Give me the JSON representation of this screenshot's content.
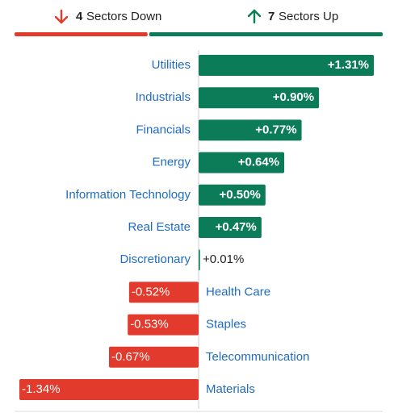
{
  "chart_data": {
    "type": "diverging-bar",
    "down_count": 4,
    "down_label": "Sectors Down",
    "up_count": 7,
    "up_label": "Sectors Up",
    "categories": [
      "Utilities",
      "Industrials",
      "Financials",
      "Energy",
      "Information Technology",
      "Real Estate",
      "Discretionary",
      "Health Care",
      "Staples",
      "Telecommunication",
      "Materials"
    ],
    "values": [
      1.31,
      0.9,
      0.77,
      0.64,
      0.5,
      0.47,
      0.01,
      -0.52,
      -0.53,
      -0.67,
      -1.34
    ],
    "value_labels": [
      "+1.31%",
      "+0.90%",
      "+0.77%",
      "+0.64%",
      "+0.50%",
      "+0.47%",
      "+0.01%",
      "-0.52%",
      "-0.53%",
      "-0.67%",
      "-1.34%"
    ],
    "up_color": "#0c7b58",
    "down_color": "#e23a2c",
    "label_color": "#1f6cc1"
  }
}
